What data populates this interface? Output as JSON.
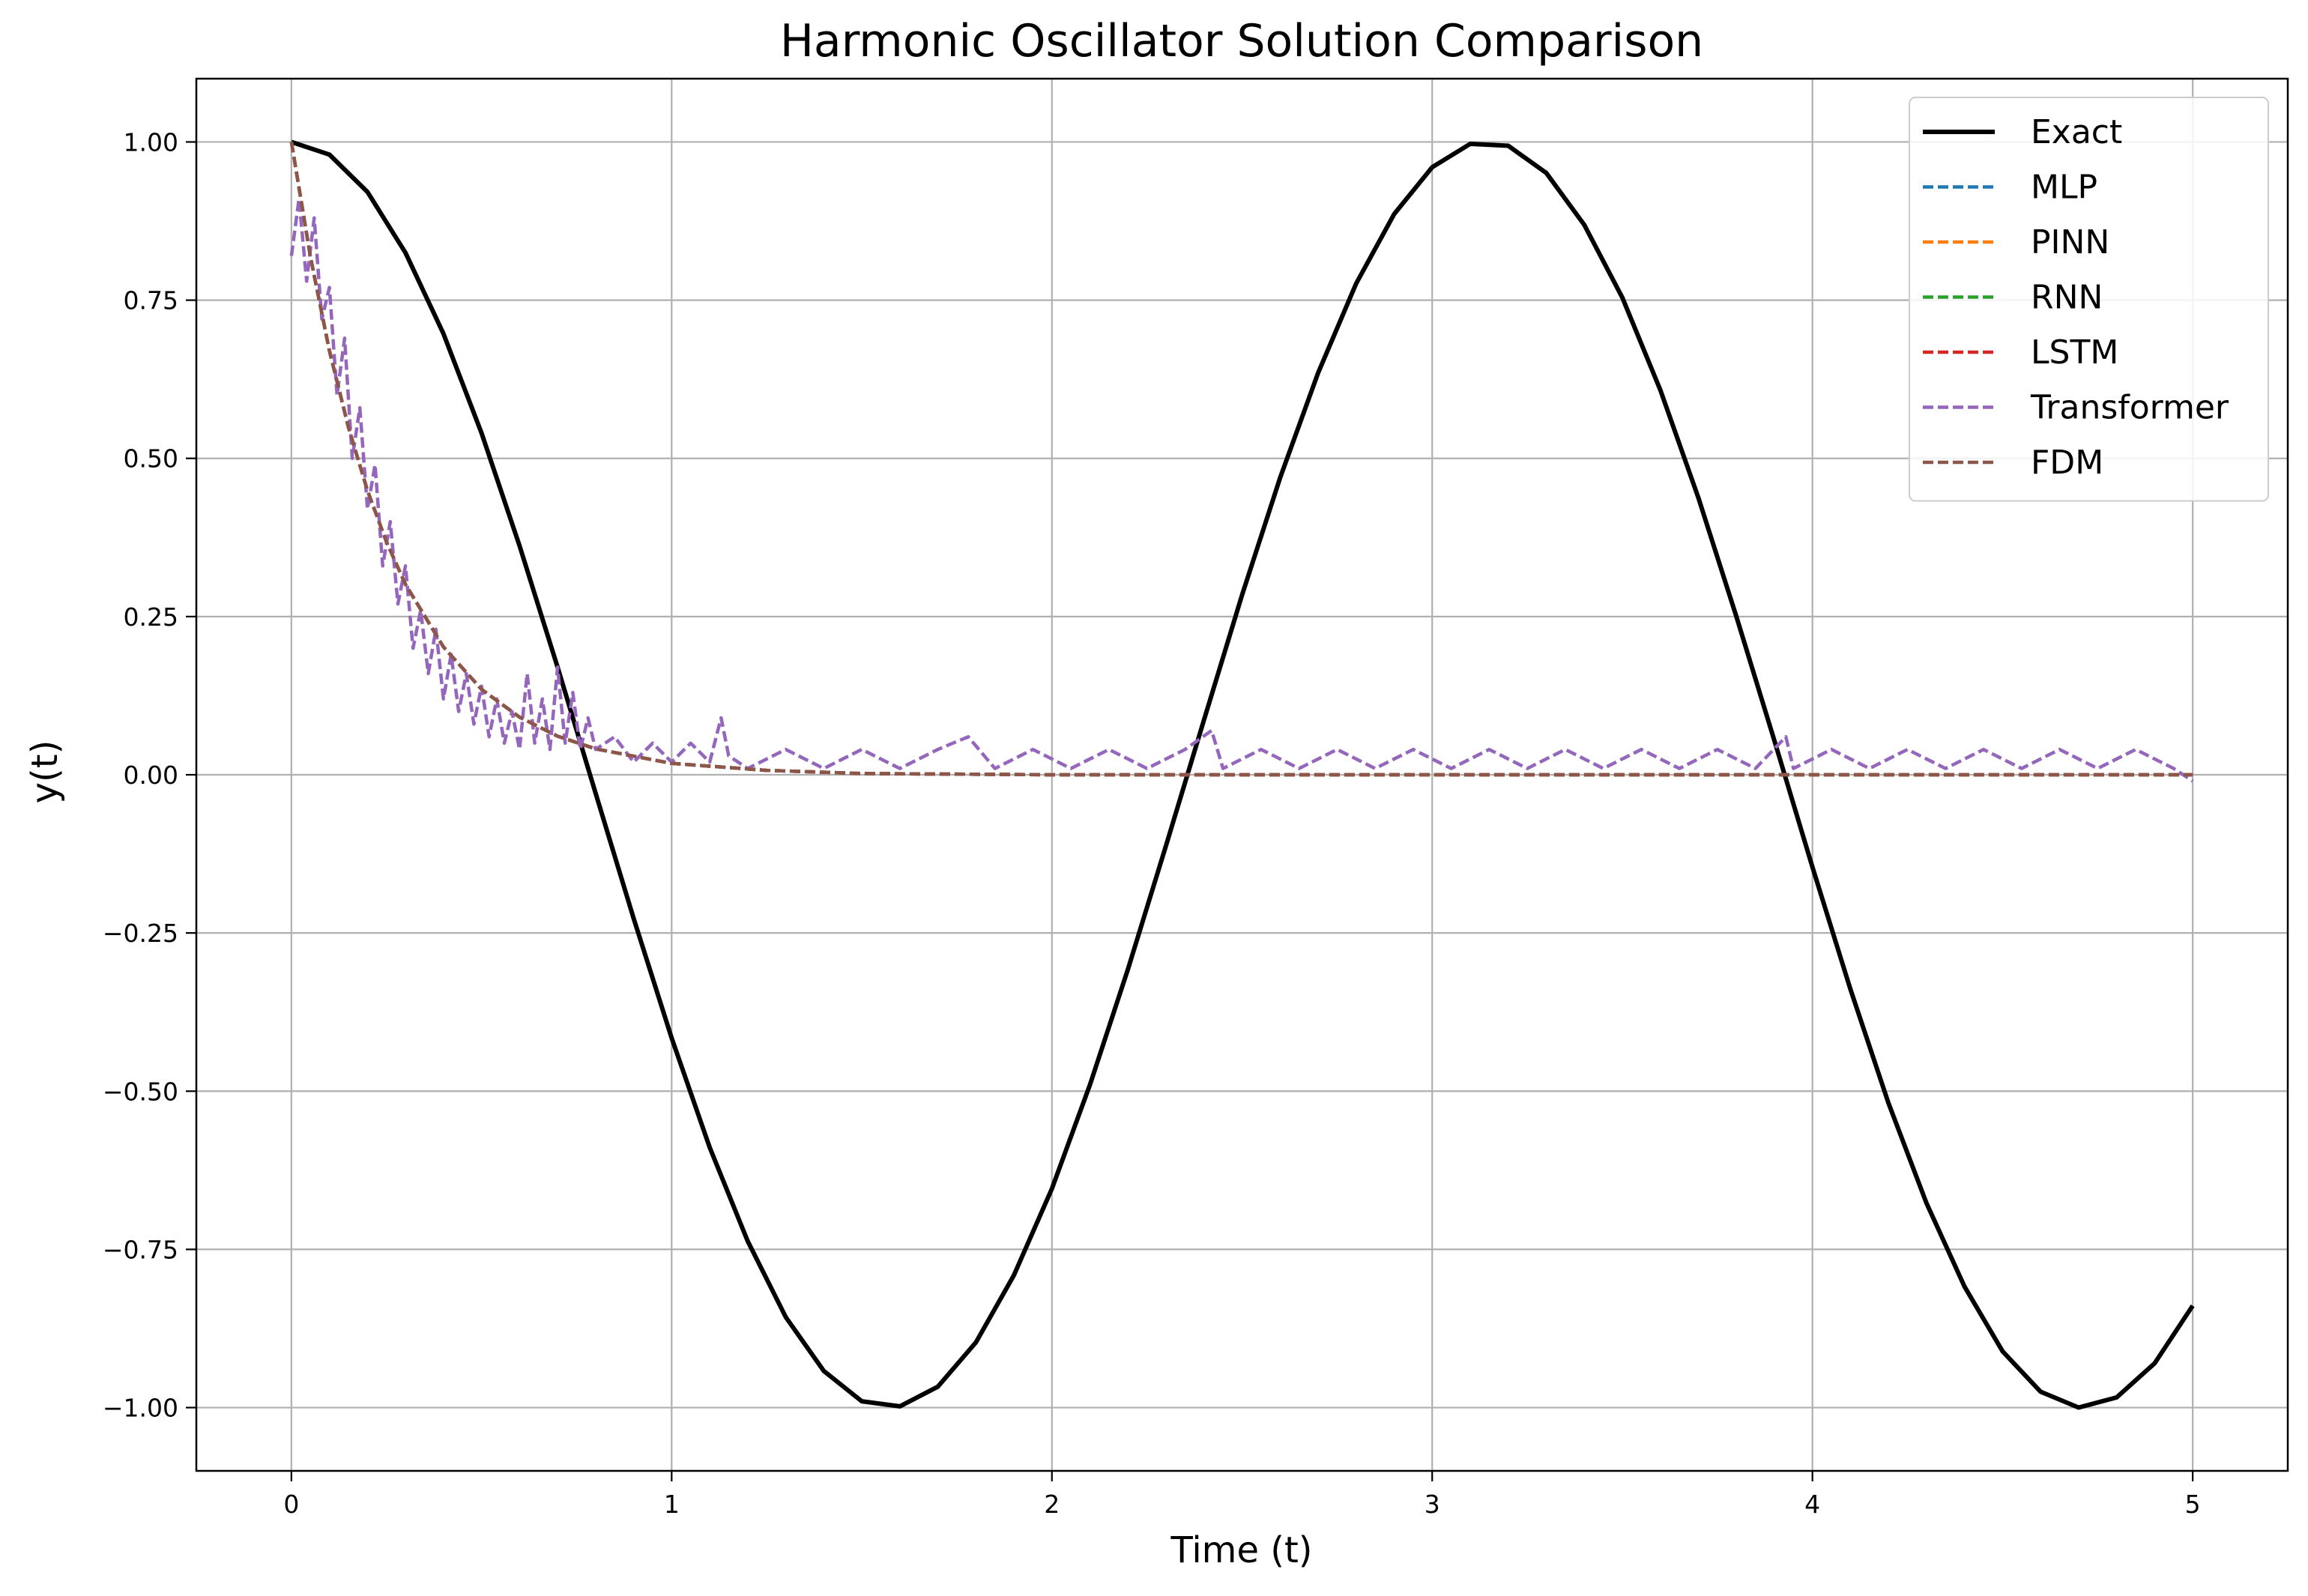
{
  "chart_data": {
    "type": "line",
    "title": "Harmonic Oscillator Solution Comparison",
    "xlabel": "Time (t)",
    "ylabel": "y(t)",
    "xlim": [
      -0.25,
      5.25
    ],
    "ylim": [
      -1.1,
      1.1
    ],
    "x_ticks": [
      0,
      1,
      2,
      3,
      4,
      5
    ],
    "x_tick_labels": [
      "0",
      "1",
      "2",
      "3",
      "4",
      "5"
    ],
    "y_ticks": [
      1.0,
      0.75,
      0.5,
      0.25,
      0.0,
      -0.25,
      -0.5,
      -0.75,
      -1.0
    ],
    "y_tick_labels": [
      "1.00",
      "0.75",
      "0.50",
      "0.25",
      "0.00",
      "−0.25",
      "−0.50",
      "−0.75",
      "−1.00"
    ],
    "grid": true,
    "legend_position": "top-right",
    "series": [
      {
        "name": "Exact",
        "color": "#000000",
        "style": "solid",
        "x": [
          0,
          0.1,
          0.2,
          0.3,
          0.4,
          0.5,
          0.6,
          0.7,
          0.8,
          0.9,
          1.0,
          1.1,
          1.2,
          1.3,
          1.4,
          1.5,
          1.6,
          1.7,
          1.8,
          1.9,
          2.0,
          2.1,
          2.2,
          2.3,
          2.4,
          2.5,
          2.6,
          2.7,
          2.8,
          2.9,
          3.0,
          3.1,
          3.2,
          3.3,
          3.4,
          3.5,
          3.6,
          3.7,
          3.8,
          3.9,
          4.0,
          4.1,
          4.2,
          4.3,
          4.4,
          4.5,
          4.6,
          4.7,
          4.8,
          4.9,
          5.0
        ],
        "values": [
          1.0,
          0.98,
          0.921,
          0.825,
          0.697,
          0.54,
          0.362,
          0.17,
          -0.029,
          -0.227,
          -0.416,
          -0.589,
          -0.737,
          -0.857,
          -0.942,
          -0.99,
          -0.998,
          -0.967,
          -0.897,
          -0.791,
          -0.654,
          -0.49,
          -0.307,
          -0.112,
          0.087,
          0.284,
          0.469,
          0.635,
          0.776,
          0.886,
          0.96,
          0.997,
          0.994,
          0.951,
          0.869,
          0.754,
          0.608,
          0.438,
          0.25,
          0.054,
          -0.146,
          -0.339,
          -0.519,
          -0.677,
          -0.809,
          -0.911,
          -0.975,
          -1.0,
          -0.984,
          -0.93,
          -0.839
        ]
      },
      {
        "name": "MLP",
        "color": "#1f77b4",
        "style": "dashed",
        "x": [
          0,
          0.05,
          0.1,
          0.15,
          0.2,
          0.25,
          0.3,
          0.4,
          0.5,
          0.6,
          0.7,
          0.8,
          1.0,
          1.25,
          1.5,
          2.0,
          3.0,
          4.0,
          5.0
        ],
        "values": [
          1.0,
          0.819,
          0.67,
          0.549,
          0.449,
          0.368,
          0.301,
          0.202,
          0.135,
          0.091,
          0.061,
          0.041,
          0.018,
          0.007,
          0.002,
          0.0,
          0.0,
          0.0,
          0.0
        ]
      },
      {
        "name": "PINN",
        "color": "#ff7f0e",
        "style": "dashed",
        "x": [
          0,
          0.05,
          0.1,
          0.15,
          0.2,
          0.25,
          0.3,
          0.4,
          0.5,
          0.6,
          0.7,
          0.8,
          1.0,
          1.25,
          1.5,
          2.0,
          3.0,
          4.0,
          5.0
        ],
        "values": [
          1.0,
          0.819,
          0.67,
          0.549,
          0.449,
          0.368,
          0.301,
          0.202,
          0.135,
          0.091,
          0.061,
          0.041,
          0.018,
          0.007,
          0.002,
          0.0,
          0.0,
          0.0,
          0.0
        ]
      },
      {
        "name": "RNN",
        "color": "#2ca02c",
        "style": "dashed",
        "x": [
          0,
          0.05,
          0.1,
          0.15,
          0.2,
          0.25,
          0.3,
          0.4,
          0.5,
          0.6,
          0.7,
          0.8,
          1.0,
          1.25,
          1.5,
          2.0,
          3.0,
          4.0,
          5.0
        ],
        "values": [
          1.0,
          0.819,
          0.67,
          0.549,
          0.449,
          0.368,
          0.301,
          0.202,
          0.135,
          0.091,
          0.061,
          0.041,
          0.018,
          0.007,
          0.002,
          0.0,
          0.0,
          0.0,
          0.0
        ]
      },
      {
        "name": "LSTM",
        "color": "#d62728",
        "style": "dashed",
        "x": [
          0,
          0.05,
          0.1,
          0.15,
          0.2,
          0.25,
          0.3,
          0.4,
          0.5,
          0.6,
          0.7,
          0.8,
          1.0,
          1.25,
          1.5,
          2.0,
          3.0,
          4.0,
          5.0
        ],
        "values": [
          1.0,
          0.819,
          0.67,
          0.549,
          0.449,
          0.368,
          0.301,
          0.202,
          0.135,
          0.091,
          0.061,
          0.041,
          0.018,
          0.007,
          0.002,
          0.0,
          0.0,
          0.0,
          0.0
        ]
      },
      {
        "name": "Transformer",
        "color": "#9467bd",
        "style": "dashed",
        "x": [
          0,
          0.02,
          0.04,
          0.06,
          0.08,
          0.1,
          0.12,
          0.14,
          0.16,
          0.18,
          0.2,
          0.22,
          0.24,
          0.26,
          0.28,
          0.3,
          0.32,
          0.34,
          0.36,
          0.38,
          0.4,
          0.42,
          0.44,
          0.46,
          0.48,
          0.5,
          0.52,
          0.54,
          0.56,
          0.58,
          0.6,
          0.62,
          0.64,
          0.66,
          0.68,
          0.7,
          0.72,
          0.74,
          0.76,
          0.78,
          0.8,
          0.85,
          0.9,
          0.95,
          1.0,
          1.05,
          1.1,
          1.13,
          1.15,
          1.2,
          1.3,
          1.4,
          1.5,
          1.6,
          1.7,
          1.78,
          1.85,
          1.95,
          2.05,
          2.15,
          2.25,
          2.35,
          2.42,
          2.45,
          2.55,
          2.65,
          2.75,
          2.85,
          2.95,
          3.05,
          3.15,
          3.25,
          3.35,
          3.45,
          3.55,
          3.65,
          3.75,
          3.85,
          3.93,
          3.95,
          4.05,
          4.15,
          4.25,
          4.35,
          4.45,
          4.55,
          4.65,
          4.75,
          4.85,
          4.95,
          5.0
        ],
        "values": [
          0.82,
          0.91,
          0.78,
          0.88,
          0.72,
          0.77,
          0.6,
          0.69,
          0.5,
          0.58,
          0.42,
          0.49,
          0.33,
          0.4,
          0.27,
          0.33,
          0.2,
          0.26,
          0.16,
          0.23,
          0.12,
          0.19,
          0.1,
          0.16,
          0.08,
          0.14,
          0.06,
          0.12,
          0.05,
          0.1,
          0.04,
          0.16,
          0.05,
          0.12,
          0.04,
          0.17,
          0.05,
          0.13,
          0.04,
          0.09,
          0.04,
          0.06,
          0.02,
          0.05,
          0.02,
          0.05,
          0.02,
          0.09,
          0.03,
          0.01,
          0.04,
          0.01,
          0.04,
          0.01,
          0.04,
          0.06,
          0.01,
          0.04,
          0.01,
          0.04,
          0.01,
          0.04,
          0.07,
          0.01,
          0.04,
          0.01,
          0.04,
          0.01,
          0.04,
          0.01,
          0.04,
          0.01,
          0.04,
          0.01,
          0.04,
          0.01,
          0.04,
          0.01,
          0.06,
          0.01,
          0.04,
          0.01,
          0.04,
          0.01,
          0.04,
          0.01,
          0.04,
          0.01,
          0.04,
          0.01,
          -0.01
        ]
      },
      {
        "name": "FDM",
        "color": "#8c564b",
        "style": "dashed",
        "x": [
          0,
          0.05,
          0.1,
          0.15,
          0.2,
          0.25,
          0.3,
          0.4,
          0.5,
          0.6,
          0.7,
          0.8,
          1.0,
          1.25,
          1.5,
          2.0,
          3.0,
          4.0,
          5.0
        ],
        "values": [
          1.0,
          0.819,
          0.67,
          0.549,
          0.449,
          0.368,
          0.301,
          0.202,
          0.135,
          0.091,
          0.061,
          0.041,
          0.018,
          0.007,
          0.002,
          0.0,
          0.0,
          0.0,
          0.0
        ]
      }
    ]
  }
}
